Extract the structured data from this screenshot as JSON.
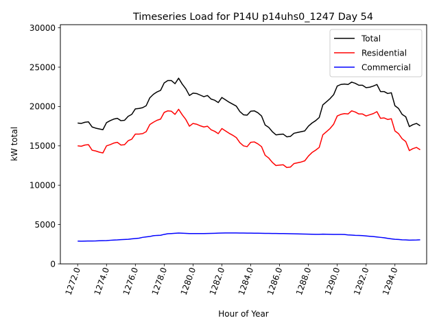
{
  "chart_data": {
    "type": "line",
    "title": "Timeseries Load for P14U p14uhs0_1247  Day 54",
    "xlabel": "Hour of Year",
    "ylabel": "kW total",
    "xlim": [
      1270.8,
      1296.2
    ],
    "ylim": [
      0,
      30400
    ],
    "x_ticks": [
      1272,
      1274,
      1276,
      1278,
      1280,
      1282,
      1284,
      1286,
      1288,
      1290,
      1292,
      1294
    ],
    "x_tick_labels": [
      "1272.0",
      "1274.0",
      "1276.0",
      "1278.0",
      "1280.0",
      "1282.0",
      "1284.0",
      "1286.0",
      "1288.0",
      "1290.0",
      "1292.0",
      "1294.0"
    ],
    "y_ticks": [
      0,
      5000,
      10000,
      15000,
      20000,
      25000,
      30000
    ],
    "y_tick_labels": [
      "0",
      "5000",
      "10000",
      "15000",
      "20000",
      "25000",
      "30000"
    ],
    "grid": false,
    "legend_position": "top-right",
    "x_start": 1272.0,
    "x_step": 0.25,
    "series": [
      {
        "name": "Total",
        "color": "#000000",
        "values": [
          17900,
          17850,
          18000,
          18050,
          17400,
          17250,
          17150,
          17050,
          17950,
          18200,
          18400,
          18500,
          18200,
          18250,
          18750,
          19000,
          19700,
          19750,
          19850,
          20100,
          21100,
          21550,
          21850,
          22050,
          23000,
          23300,
          23300,
          22900,
          23600,
          22850,
          22250,
          21400,
          21700,
          21650,
          21450,
          21250,
          21400,
          20950,
          20800,
          20500,
          21150,
          20850,
          20550,
          20300,
          20050,
          19350,
          18950,
          18900,
          19400,
          19450,
          19200,
          18800,
          17650,
          17350,
          16800,
          16400,
          16450,
          16500,
          16150,
          16200,
          16600,
          16700,
          16800,
          16900,
          17500,
          17900,
          18200,
          18600,
          20200,
          20600,
          21000,
          21500,
          22600,
          22800,
          22850,
          22800,
          23100,
          22950,
          22700,
          22700,
          22400,
          22450,
          22600,
          22800,
          21900,
          21900,
          21650,
          21750,
          20100,
          19750,
          19000,
          18700,
          17450,
          17700,
          17850,
          17550
        ]
      },
      {
        "name": "Residential",
        "color": "#ff0000",
        "values": [
          15000,
          14950,
          15100,
          15150,
          14450,
          14350,
          14200,
          14100,
          15000,
          15150,
          15350,
          15450,
          15100,
          15150,
          15650,
          15850,
          16500,
          16500,
          16550,
          16800,
          17700,
          18000,
          18250,
          18400,
          19250,
          19450,
          19400,
          19000,
          19650,
          18950,
          18350,
          17500,
          17850,
          17750,
          17550,
          17400,
          17500,
          17050,
          16850,
          16550,
          17200,
          16900,
          16600,
          16350,
          16050,
          15400,
          15000,
          14900,
          15450,
          15500,
          15250,
          14900,
          13800,
          13450,
          12900,
          12500,
          12550,
          12600,
          12250,
          12300,
          12750,
          12850,
          12950,
          13100,
          13700,
          14150,
          14450,
          14800,
          16400,
          16800,
          17200,
          17750,
          18800,
          19000,
          19100,
          19050,
          19450,
          19300,
          19050,
          19050,
          18800,
          18950,
          19100,
          19350,
          18500,
          18550,
          18350,
          18450,
          16900,
          16550,
          15900,
          15550,
          14400,
          14650,
          14800,
          14500
        ]
      },
      {
        "name": "Commercial",
        "color": "#0000ff",
        "values": [
          2900,
          2890,
          2900,
          2910,
          2910,
          2920,
          2940,
          2950,
          2960,
          3000,
          3030,
          3050,
          3080,
          3100,
          3120,
          3180,
          3220,
          3270,
          3370,
          3430,
          3480,
          3580,
          3620,
          3640,
          3750,
          3830,
          3860,
          3890,
          3920,
          3900,
          3880,
          3860,
          3850,
          3860,
          3860,
          3860,
          3870,
          3880,
          3890,
          3910,
          3920,
          3930,
          3930,
          3930,
          3930,
          3920,
          3920,
          3910,
          3910,
          3900,
          3900,
          3890,
          3880,
          3880,
          3870,
          3870,
          3860,
          3850,
          3840,
          3830,
          3820,
          3810,
          3800,
          3790,
          3780,
          3770,
          3760,
          3760,
          3780,
          3770,
          3760,
          3750,
          3740,
          3740,
          3730,
          3680,
          3660,
          3630,
          3610,
          3590,
          3550,
          3510,
          3470,
          3420,
          3370,
          3320,
          3240,
          3180,
          3130,
          3100,
          3060,
          3050,
          3020,
          3030,
          3040,
          3060
        ]
      }
    ]
  }
}
